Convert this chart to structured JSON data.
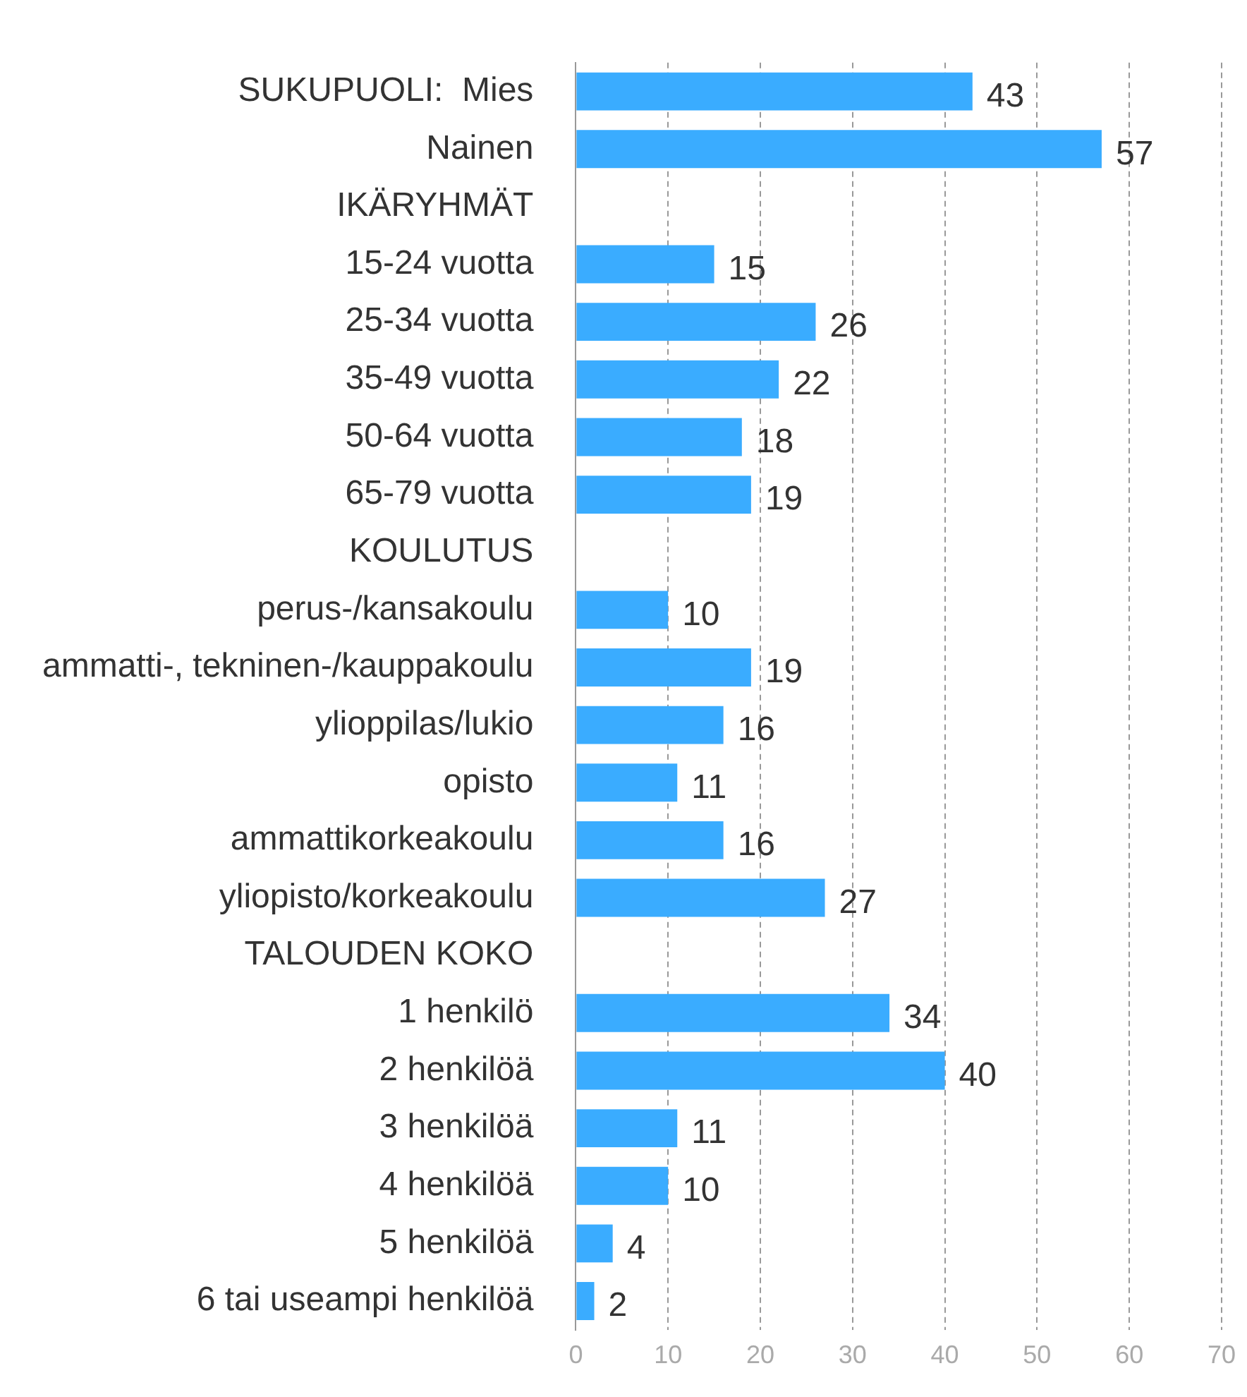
{
  "chart_data": {
    "type": "bar",
    "orientation": "horizontal",
    "categories": [
      "SUKUPUOLI:  Mies",
      "Nainen",
      "IKÄRYHMÄT",
      "15-24 vuotta",
      "25-34 vuotta",
      "35-49 vuotta",
      "50-64 vuotta",
      "65-79 vuotta",
      "KOULUTUS",
      "perus-/kansakoulu",
      "ammatti-, tekninen-/kauppakoulu",
      "ylioppilas/lukio",
      "opisto",
      "ammattikorkeakoulu",
      "yliopisto/korkeakoulu",
      "TALOUDEN KOKO",
      "1 henkilö",
      "2 henkilöä",
      "3 henkilöä",
      "4 henkilöä",
      "5 henkilöä",
      "6 tai useampi henkilöä"
    ],
    "values": [
      43,
      57,
      null,
      15,
      26,
      22,
      18,
      19,
      null,
      10,
      19,
      16,
      11,
      16,
      27,
      null,
      34,
      40,
      11,
      10,
      4,
      2
    ],
    "color": "#3aacff",
    "xlim": [
      0,
      70
    ],
    "xticks": [
      0,
      10,
      20,
      30,
      40,
      50,
      60,
      70
    ],
    "grid": "x",
    "data_labels": true,
    "legend": false
  }
}
